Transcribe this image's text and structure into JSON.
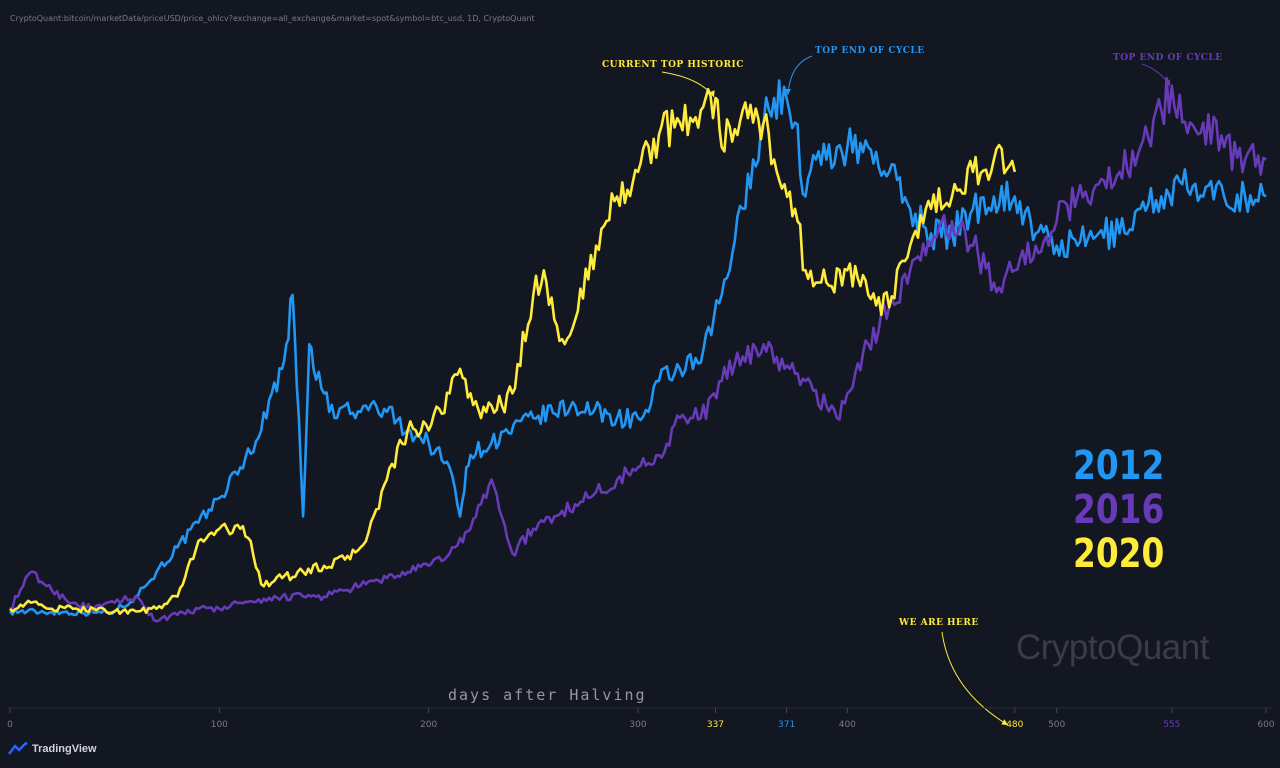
{
  "header": {
    "source": "CryptoQuant:bitcoin/marketData/priceUSD/price_ohlcv?exchange=all_exchange&market=spot&symbol=btc_usd, 1D, CryptoQuant"
  },
  "branding": {
    "tradingview": "TradingView",
    "watermark": "CryptoQuant"
  },
  "colors": {
    "background": "#131722",
    "axis_text": "#787b86",
    "c2012": "#2196f3",
    "c2016": "#673ab7",
    "c2020": "#ffeb3b"
  },
  "chart_data": {
    "type": "line",
    "xlabel": "days after Halving",
    "xlim": [
      0,
      600
    ],
    "x_ticks": [
      {
        "value": 0,
        "label": "0"
      },
      {
        "value": 100,
        "label": "100"
      },
      {
        "value": 200,
        "label": "200"
      },
      {
        "value": 300,
        "label": "300"
      },
      {
        "value": 337,
        "label": "337",
        "color": "#ffeb3b"
      },
      {
        "value": 371,
        "label": "371",
        "color": "#2196f3"
      },
      {
        "value": 400,
        "label": "400"
      },
      {
        "value": 480,
        "label": "480",
        "color": "#ffeb3b"
      },
      {
        "value": 500,
        "label": "500"
      },
      {
        "value": 555,
        "label": "555",
        "color": "#673ab7"
      },
      {
        "value": 600,
        "label": "600"
      }
    ],
    "y_scale": "relative",
    "grid": false,
    "legend": {
      "placement": "right",
      "entries": [
        {
          "label": "2012",
          "color": "#2196f3"
        },
        {
          "label": "2016",
          "color": "#673ab7"
        },
        {
          "label": "2020",
          "color": "#ffeb3b"
        }
      ]
    },
    "series": [
      {
        "color": "#2196f3",
        "x": [
          0,
          20,
          40,
          50,
          60,
          70,
          80,
          90,
          100,
          110,
          120,
          125,
          130,
          132,
          135,
          138,
          140,
          143,
          145,
          150,
          155,
          160,
          165,
          170,
          180,
          190,
          200,
          210,
          215,
          218,
          220,
          230,
          250,
          270,
          290,
          300,
          305,
          310,
          320,
          330,
          340,
          350,
          355,
          360,
          365,
          371,
          375,
          380,
          385,
          390,
          395,
          400,
          410,
          420,
          430,
          440,
          450,
          460,
          470,
          480,
          490,
          500,
          510,
          520,
          530,
          540,
          550,
          560,
          570,
          580,
          590,
          600
        ],
        "y": [
          0.3,
          0.25,
          0.2,
          0.3,
          1.5,
          3.5,
          5.5,
          7.5,
          9.5,
          12,
          15,
          18,
          20,
          22,
          26,
          16,
          8,
          22,
          20,
          18,
          16,
          17,
          16,
          17,
          16.5,
          15,
          14,
          12,
          8,
          12,
          13,
          14,
          16,
          17,
          16,
          16,
          16.5,
          19,
          20,
          20.5,
          26,
          33,
          37,
          40,
          42,
          42,
          40,
          34,
          37,
          37,
          38,
          38,
          38,
          36,
          33,
          31,
          31,
          33,
          34,
          34,
          31,
          30,
          30,
          31,
          31,
          33,
          34,
          35,
          34,
          34,
          34,
          34
        ]
      },
      {
        "color": "#673ab7",
        "x": [
          0,
          10,
          20,
          30,
          40,
          50,
          60,
          70,
          80,
          90,
          100,
          110,
          120,
          130,
          140,
          150,
          160,
          170,
          180,
          190,
          200,
          210,
          220,
          230,
          240,
          250,
          260,
          270,
          280,
          290,
          300,
          310,
          320,
          330,
          340,
          350,
          360,
          370,
          380,
          390,
          395,
          400,
          410,
          420,
          430,
          440,
          450,
          460,
          470,
          480,
          490,
          500,
          510,
          520,
          530,
          540,
          550,
          555,
          560,
          570,
          580,
          590,
          600
        ],
        "y": [
          0.5,
          3.5,
          2,
          1,
          0.5,
          1,
          1.5,
          -0.5,
          0,
          0.5,
          0.5,
          1,
          1,
          1.5,
          1.5,
          1.5,
          2,
          2.5,
          3,
          3.5,
          4,
          5,
          7,
          11,
          5,
          7,
          8,
          9,
          10,
          11,
          12,
          13,
          16,
          16,
          19,
          21,
          22,
          20,
          19,
          17,
          16,
          18,
          22,
          25,
          28,
          30,
          32,
          30,
          27,
          28,
          30,
          32,
          34,
          35,
          36,
          38,
          41,
          43,
          40,
          40,
          38,
          37,
          37
        ]
      },
      {
        "color": "#ffeb3b",
        "x": [
          0,
          10,
          20,
          30,
          40,
          50,
          60,
          70,
          80,
          90,
          100,
          110,
          115,
          120,
          130,
          140,
          150,
          160,
          170,
          180,
          190,
          200,
          210,
          215,
          220,
          225,
          230,
          235,
          240,
          250,
          255,
          260,
          265,
          270,
          280,
          290,
          300,
          310,
          320,
          330,
          337,
          340,
          350,
          355,
          360,
          365,
          370,
          375,
          380,
          385,
          390,
          400,
          410,
          420,
          430,
          440,
          450,
          460,
          470,
          480
        ],
        "y": [
          0.5,
          1,
          0.5,
          0.5,
          0.5,
          0.3,
          0.3,
          0.5,
          1.5,
          6,
          7,
          7,
          6,
          2.5,
          3,
          3.5,
          4,
          4.5,
          6,
          11,
          15,
          15,
          18,
          20,
          18,
          16,
          17,
          17,
          18,
          26,
          28,
          24,
          22,
          24,
          30,
          34,
          36,
          39,
          40,
          41,
          42,
          38,
          41,
          40,
          40,
          37,
          35,
          33,
          28,
          27,
          27,
          28,
          26,
          25,
          30,
          33,
          34,
          36,
          37,
          36
        ]
      }
    ],
    "annotations": [
      {
        "text": "CURRENT TOP HISTORIC",
        "color": "#ffeb3b",
        "x": 337
      },
      {
        "text": "TOP END OF CYCLE",
        "color": "#2196f3",
        "x": 371
      },
      {
        "text": "TOP END OF CYCLE",
        "color": "#673ab7",
        "x": 555
      },
      {
        "text": "WE ARE HERE",
        "color": "#ffeb3b",
        "x": 480
      }
    ]
  }
}
